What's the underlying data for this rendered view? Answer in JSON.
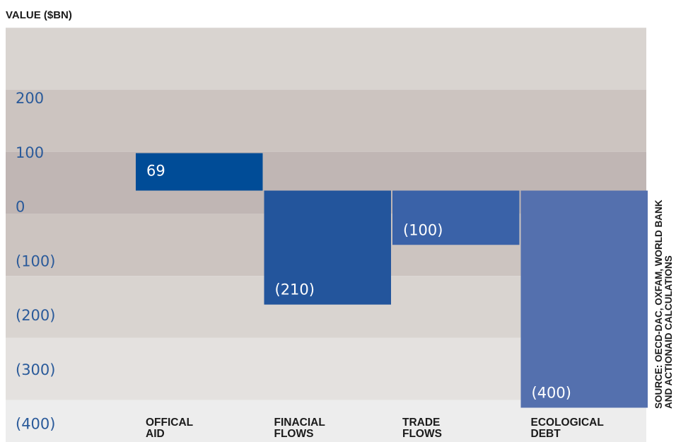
{
  "chart_data": {
    "type": "bar",
    "ylabel": "VALUE ($BN)",
    "categories": [
      [
        "OFFICAL",
        "AID"
      ],
      [
        "FINACIAL",
        "FLOWS"
      ],
      [
        "TRADE",
        "FLOWS"
      ],
      [
        "ECOLOGICAL",
        "DEBT"
      ]
    ],
    "values": [
      69,
      -210,
      -100,
      -400
    ],
    "value_labels": [
      "69",
      "(210)",
      "(100)",
      "(400)"
    ],
    "y_ticks": [
      200,
      100,
      0,
      -100,
      -200,
      -300,
      -400
    ],
    "y_tick_labels": [
      "200",
      "100",
      "0",
      "(100)",
      "(200)",
      "(300)",
      "(400)"
    ],
    "ylim": [
      -500,
      300
    ],
    "bar_colors": [
      "#004c97",
      "#23559c",
      "#3a62a8",
      "#5470ae"
    ],
    "band_colors": [
      "#d9d4d0",
      "#ccc4c0",
      "#c0b6b4",
      "#ccc4c0",
      "#d9d4d0",
      "#e4e1df",
      "#ededed"
    ],
    "tick_color": "#2a5a9a",
    "label_color_light": "#ffffff",
    "label_color_dark": "#1a1a1a",
    "source": [
      "SOURCE: OECD-DAC, OXFAM, WORLD BANK",
      "AND ACTIONAID CALCULATIONS"
    ]
  }
}
